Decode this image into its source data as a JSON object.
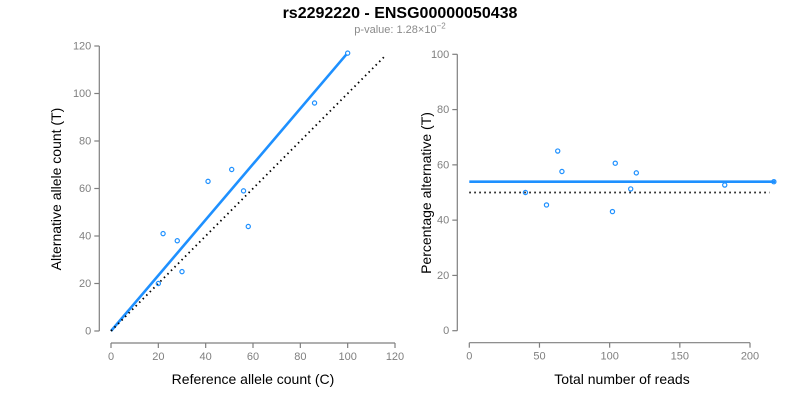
{
  "header": {
    "title": "rs2292220 - ENSG00000050438",
    "pvalue_prefix": "p-value: ",
    "pvalue_base": "1.28×10",
    "pvalue_exponent": "−2"
  },
  "colors": {
    "accent": "#1E90FF",
    "axis": "#7F7F7F",
    "tick_label": "#7F7F7F",
    "subtitle": "#8A8A8A",
    "line_dark": "#000000",
    "title_text": "#000000"
  },
  "chart_data": [
    {
      "type": "scatter",
      "panel": "left",
      "xlabel": "Reference allele count (C)",
      "ylabel": "Alternative allele count (T)",
      "xlim": [
        0,
        120
      ],
      "ylim": [
        0,
        120
      ],
      "xticks": [
        0,
        20,
        40,
        60,
        80,
        100,
        120
      ],
      "yticks": [
        0,
        20,
        40,
        60,
        80,
        100,
        120
      ],
      "grid": false,
      "points": [
        [
          20,
          20
        ],
        [
          22,
          41
        ],
        [
          28,
          38
        ],
        [
          30,
          25
        ],
        [
          41,
          63
        ],
        [
          51,
          68
        ],
        [
          56,
          59
        ],
        [
          58,
          44
        ],
        [
          86,
          96
        ],
        [
          100,
          117
        ]
      ],
      "lines": [
        {
          "name": "regression-line",
          "x1": 0,
          "y1": 0,
          "x2": 99.5,
          "y2": 116.5,
          "dashed": false,
          "color": "accent"
        },
        {
          "name": "identity-line",
          "x1": 0,
          "y1": 0,
          "x2": 116.3,
          "y2": 116.3,
          "dashed": true,
          "color": "black"
        }
      ]
    },
    {
      "type": "scatter",
      "panel": "right",
      "xlabel": "Total number of reads",
      "ylabel": "Percentage alternative (T)",
      "xlim": [
        0,
        220
      ],
      "ylim": [
        0,
        100
      ],
      "xticks": [
        0,
        50,
        100,
        150,
        200
      ],
      "yticks": [
        0,
        20,
        40,
        60,
        80,
        100
      ],
      "grid": false,
      "points": [
        [
          40,
          50
        ],
        [
          55,
          45.5
        ],
        [
          63,
          65
        ],
        [
          66,
          57.6
        ],
        [
          102,
          43.1
        ],
        [
          104,
          60.6
        ],
        [
          115,
          51.3
        ],
        [
          119,
          57.1
        ],
        [
          182,
          52.7
        ],
        [
          217,
          53.9
        ]
      ],
      "lines": [
        {
          "name": "mean-percentage-line",
          "x1": 0,
          "y1": 53.9,
          "x2": 218,
          "y2": 53.9,
          "dashed": false,
          "color": "accent"
        },
        {
          "name": "fifty-percent-line",
          "x1": 0,
          "y1": 50,
          "x2": 214,
          "y2": 50,
          "dashed": true,
          "color": "black"
        }
      ]
    }
  ]
}
